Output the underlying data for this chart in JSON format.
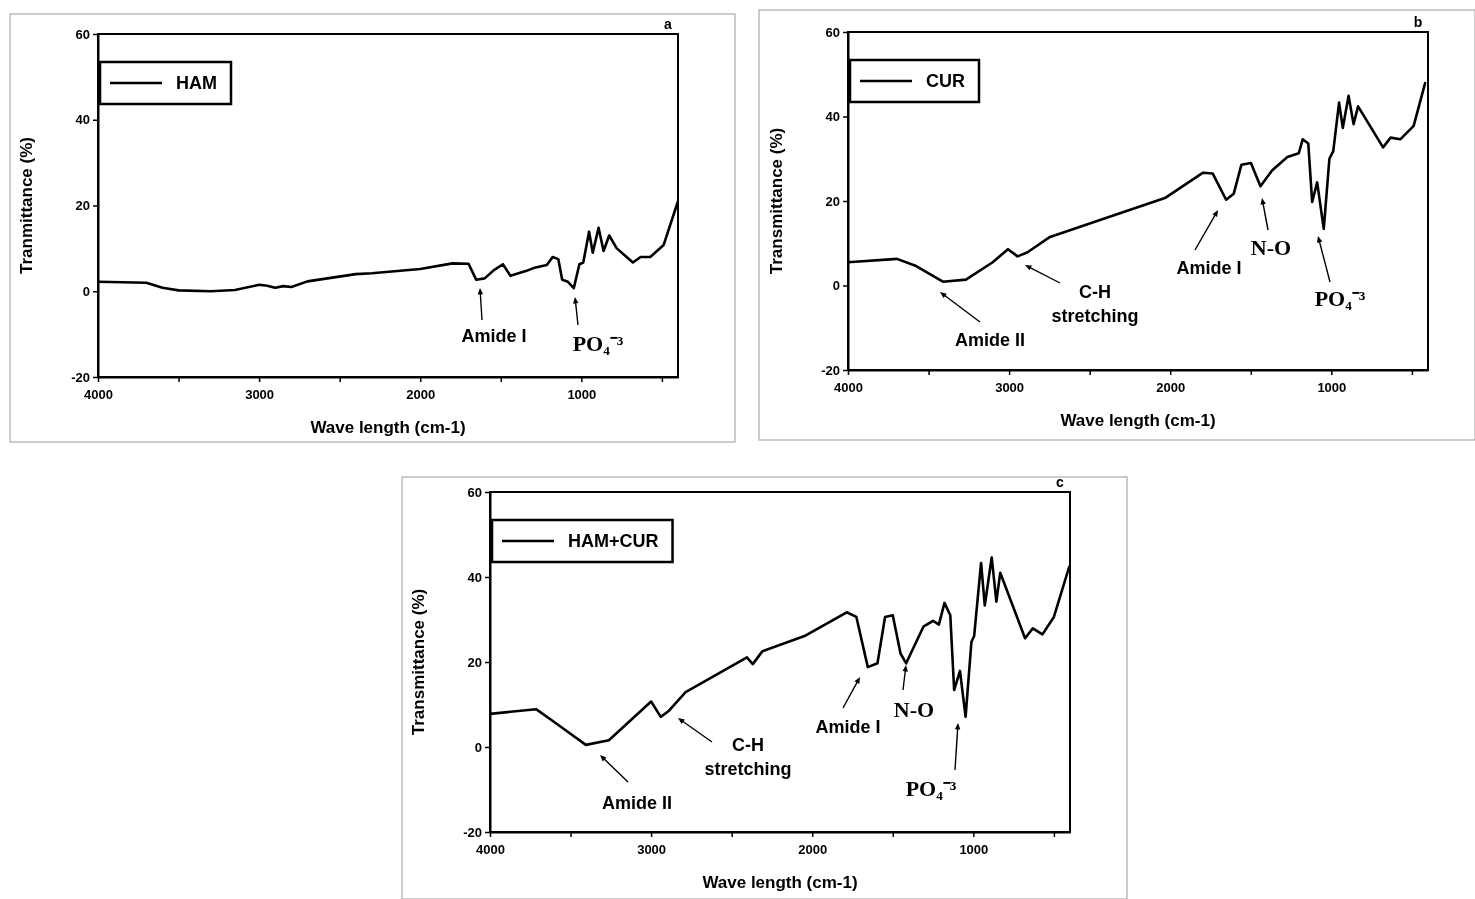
{
  "chart_data": [
    {
      "type": "line",
      "title": "a",
      "xlabel": "Wave length (cm-1)",
      "ylabel": "Tranmittance (%)",
      "xlim": [
        4000,
        400
      ],
      "ylim": [
        -20,
        60
      ],
      "xticks": [
        4000,
        {
          "value": 3500,
          "label": null
        },
        3000,
        {
          "value": 2500,
          "label": null
        },
        2000,
        {
          "value": 1500,
          "label": null
        },
        1000,
        {
          "value": 500,
          "label": null
        }
      ],
      "yticks": [
        -20,
        0,
        20,
        40,
        60
      ],
      "grid": false,
      "legend": "top left",
      "line_style": "solid",
      "series": [
        {
          "name": "HAM",
          "color": "#000000",
          "x": [
            4000,
            3700,
            3600,
            3500,
            3300,
            3150,
            3000,
            2950,
            2900,
            2850,
            2800,
            2700,
            2400,
            2300,
            2000,
            1800,
            1700,
            1653,
            1600,
            1540,
            1487,
            1440,
            1345,
            1297,
            1214,
            1178,
            1143,
            1119,
            1083,
            1047,
            1012,
            988,
            952,
            929,
            893,
            862,
            827,
            780,
            680,
            632,
            572,
            489,
            400
          ],
          "values": [
            2.2,
            2,
            0.8,
            0.2,
            0,
            0.3,
            1.5,
            1.3,
            0.8,
            1.2,
            1,
            2.3,
            4,
            4.2,
            5.2,
            6.5,
            6.4,
            2.7,
            3,
            5,
            6.3,
            3.6,
            4.7,
            5.4,
            6.1,
            8,
            7.5,
            2.7,
            2.2,
            0.7,
            6.3,
            6.7,
            13.9,
            9,
            14.8,
            9.4,
            13,
            10,
            6.7,
            8,
            8,
            10.8,
            21
          ]
        }
      ],
      "annotations": [
        "Amide I",
        "PO₄⁻³"
      ]
    },
    {
      "type": "line",
      "title": "b",
      "xlabel": "Wave length (cm-1)",
      "ylabel": "Transmittance (%)",
      "xlim": [
        4000,
        400
      ],
      "ylim": [
        -20,
        60
      ],
      "xticks": [
        4000,
        {
          "value": 3500,
          "label": null
        },
        3000,
        {
          "value": 2500,
          "label": null
        },
        2000,
        {
          "value": 1500,
          "label": null
        },
        1000,
        {
          "value": 500,
          "label": null
        }
      ],
      "yticks": [
        -20,
        0,
        20,
        40,
        60
      ],
      "grid": false,
      "legend": "top left",
      "line_style": "solid",
      "series": [
        {
          "name": "CUR",
          "color": "#000000",
          "x": [
            4000,
            3696,
            3577,
            3411,
            3268,
            3102,
            3007,
            2948,
            2888,
            2746,
            2390,
            2033,
            1796,
            1736,
            1653,
            1606,
            1558,
            1499,
            1440,
            1368,
            1273,
            1202,
            1178,
            1143,
            1119,
            1088,
            1047,
            1012,
            988,
            952,
            929,
            893,
            862,
            834,
            679,
            632,
            572,
            489,
            418
          ],
          "values": [
            5.5,
            6.3,
            4.6,
            0.9,
            1.4,
            5.5,
            8.6,
            6.9,
            7.8,
            11.5,
            16.1,
            20.7,
            26.7,
            26.5,
            20.3,
            21.7,
            28.6,
            29,
            23.5,
            27.2,
            30.4,
            31.3,
            34.6,
            33.6,
            19.8,
            24.4,
            13.4,
            30,
            31.8,
            43.3,
            37.3,
            44.9,
            38.2,
            42.4,
            32.7,
            35,
            34.6,
            37.8,
            47.9
          ]
        }
      ],
      "annotations": [
        "Amide II",
        "C-H\nstretching",
        "Amide I",
        "N-O",
        "PO₄⁻³"
      ]
    },
    {
      "type": "line",
      "title": "c",
      "xlabel": "Wave length (cm-1)",
      "ylabel": "Transmittance (%)",
      "xlim": [
        4000,
        400
      ],
      "ylim": [
        -20,
        60
      ],
      "xticks": [
        4000,
        {
          "value": 3500,
          "label": null
        },
        3000,
        {
          "value": 2500,
          "label": null
        },
        2000,
        {
          "value": 1500,
          "label": null
        },
        1000,
        {
          "value": 500,
          "label": null
        }
      ],
      "yticks": [
        -20,
        0,
        20,
        40,
        60
      ],
      "grid": false,
      "legend": "top left",
      "line_style": "solid",
      "series": [
        {
          "name": "HAM+CUR",
          "color": "#000000",
          "x": [
            4000,
            3714,
            3595,
            3405,
            3262,
            3000,
            2940,
            2893,
            2786,
            2405,
            2369,
            2310,
            2048,
            1786,
            1726,
            1655,
            1595,
            1548,
            1500,
            1452,
            1417,
            1310,
            1250,
            1214,
            1179,
            1143,
            1119,
            1083,
            1048,
            1012,
            995,
            952,
            929,
            886,
            857,
            833,
            679,
            631,
            571,
            500,
            405
          ],
          "values": [
            7.8,
            8.9,
            5.7,
            0.5,
            1.6,
            10.7,
            7.1,
            8.4,
            12.9,
            21.1,
            19.5,
            22.5,
            26.1,
            31.7,
            30.6,
            18.8,
            19.7,
            30.6,
            31,
            22,
            19.7,
            28.3,
            29.7,
            28.8,
            33.9,
            31,
            13.4,
            17.9,
            7.1,
            24.7,
            26.1,
            43.3,
            33.3,
            44.6,
            34.2,
            41,
            25.6,
            27.9,
            26.5,
            30.6,
            42.4
          ]
        }
      ],
      "annotations": [
        "Amide II",
        "C-H\nstretching",
        "Amide I",
        "N-O",
        "PO₄⁻³"
      ]
    }
  ]
}
